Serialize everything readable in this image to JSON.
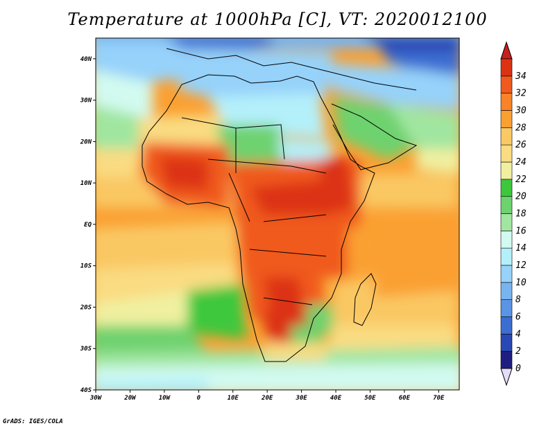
{
  "title": "Temperature at 1000hPa [C], VT: 2020012100",
  "footer": "GrADS: IGES/COLA",
  "map": {
    "type": "filled-contour-map",
    "lon_range": [
      -30,
      76
    ],
    "lat_range": [
      -40,
      45
    ],
    "lat_ticks": [
      {
        "lat": 40,
        "label": "40N"
      },
      {
        "lat": 30,
        "label": "30N"
      },
      {
        "lat": 20,
        "label": "20N"
      },
      {
        "lat": 10,
        "label": "10N"
      },
      {
        "lat": 0,
        "label": "EQ"
      },
      {
        "lat": -10,
        "label": "10S"
      },
      {
        "lat": -20,
        "label": "20S"
      },
      {
        "lat": -30,
        "label": "30S"
      },
      {
        "lat": -40,
        "label": "40S"
      }
    ],
    "lon_ticks": [
      {
        "lon": -30,
        "label": "30W"
      },
      {
        "lon": -20,
        "label": "20W"
      },
      {
        "lon": -10,
        "label": "10W"
      },
      {
        "lon": 0,
        "label": "0"
      },
      {
        "lon": 10,
        "label": "10E"
      },
      {
        "lon": 20,
        "label": "20E"
      },
      {
        "lon": 30,
        "label": "30E"
      },
      {
        "lon": 40,
        "label": "40E"
      },
      {
        "lon": 50,
        "label": "50E"
      },
      {
        "lon": 60,
        "label": "60E"
      },
      {
        "lon": 70,
        "label": "70E"
      }
    ]
  },
  "colorbar": {
    "levels": [
      "0",
      "2",
      "4",
      "6",
      "8",
      "10",
      "12",
      "14",
      "16",
      "18",
      "20",
      "22",
      "24",
      "26",
      "28",
      "30",
      "32",
      "34"
    ],
    "colors": [
      "#1e1e82",
      "#2a48b4",
      "#3c6ed2",
      "#5a94e6",
      "#78b4f0",
      "#96d2fa",
      "#b4f0fa",
      "#d2faf0",
      "#a0e6a0",
      "#6ed26e",
      "#3cc83c",
      "#f0f0a0",
      "#fadc82",
      "#fac864",
      "#faa032",
      "#fa8228",
      "#f05a1e",
      "#dc3214"
    ],
    "end_low": "#e6dcf8",
    "end_high": "#c81e1e"
  }
}
